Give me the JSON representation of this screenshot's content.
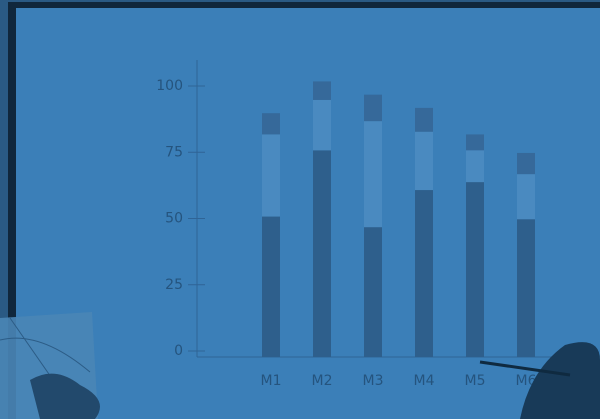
{
  "chart_data": {
    "type": "stacked_bar",
    "categories": [
      "M1",
      "M2",
      "M3",
      "M4",
      "M5",
      "M6"
    ],
    "series": [
      {
        "color": "#2e5f8c",
        "values": [
          53,
          78,
          49,
          63,
          66,
          52
        ]
      },
      {
        "color": "#4a8ac0",
        "values": [
          31,
          19,
          40,
          22,
          12,
          17
        ]
      },
      {
        "color": "#36699a",
        "values": [
          8,
          7,
          10,
          9,
          6,
          8
        ]
      }
    ],
    "ylim": [
      0,
      110
    ],
    "yticks": [
      0,
      25,
      50,
      75,
      100
    ]
  }
}
